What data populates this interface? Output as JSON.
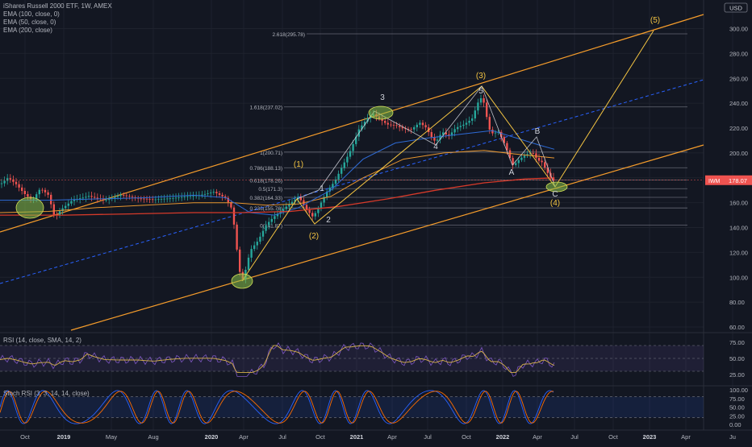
{
  "legend": {
    "title": "iShares Russell 2000 ETF, 1W, AMEX",
    "indicators": [
      "EMA (100, close, 0)",
      "EMA (50, close, 0)",
      "EMA (200, close)"
    ]
  },
  "price_axis": {
    "currency": "USD",
    "ticks": [
      "300.00",
      "280.00",
      "260.00",
      "240.00",
      "220.00",
      "200.00",
      "180.00",
      "160.00",
      "140.00",
      "120.00",
      "100.00",
      "80.00",
      "60.00"
    ],
    "tick_values": [
      300,
      280,
      260,
      240,
      220,
      200,
      180,
      160,
      140,
      120,
      100,
      80,
      60
    ],
    "last_symbol": "IWM",
    "last_price": "178.07",
    "last_price_value": 178.07
  },
  "time_axis": {
    "labels": [
      "Oct",
      "2019",
      "May",
      "Aug",
      "2020",
      "Apr",
      "Jul",
      "Oct",
      "2021",
      "Apr",
      "Jul",
      "Oct",
      "2022",
      "Apr",
      "Jul",
      "Oct",
      "2023",
      "Apr",
      "Ju"
    ]
  },
  "fib_levels": [
    {
      "label": "2.618(295.78)",
      "value": 295.78
    },
    {
      "label": "1.618(237.02)",
      "value": 237.02
    },
    {
      "label": "1(200.71)",
      "value": 200.71
    },
    {
      "label": "0.786(188.13)",
      "value": 188.13
    },
    {
      "label": "0.618(178.26)",
      "value": 178.26
    },
    {
      "label": "0.5(171.3)",
      "value": 171.3
    },
    {
      "label": "0.382(164.33)",
      "value": 164.33
    },
    {
      "label": "0.236(155.76)",
      "value": 155.76
    },
    {
      "label": "0(141.87)",
      "value": 141.87
    }
  ],
  "wave_labels": [
    {
      "text": "(5)",
      "color": "#f5c542"
    },
    {
      "text": "(3)",
      "color": "#f5c542"
    },
    {
      "text": "3",
      "color": "#d1d4dc"
    },
    {
      "text": "5",
      "color": "#d1d4dc"
    },
    {
      "text": "4",
      "color": "#d1d4dc"
    },
    {
      "text": "B",
      "color": "#d1d4dc"
    },
    {
      "text": "A",
      "color": "#d1d4dc"
    },
    {
      "text": "C",
      "color": "#d1d4dc"
    },
    {
      "text": "(4)",
      "color": "#f5c542"
    },
    {
      "text": "1",
      "color": "#d1d4dc"
    },
    {
      "text": "(1)",
      "color": "#f5c542"
    },
    {
      "text": "2",
      "color": "#d1d4dc"
    },
    {
      "text": "(2)",
      "color": "#f5c542"
    }
  ],
  "rsi_pane": {
    "label": "RSI (14, close, SMA, 14, 2)",
    "ticks": [
      "75.00",
      "50.00",
      "25.00"
    ]
  },
  "stoch_pane": {
    "label": "Stoch RSI (3, 3, 14, 14, close)",
    "ticks": [
      "100.00",
      "75.00",
      "50.00",
      "25.00",
      "0.00"
    ]
  },
  "colors": {
    "background": "#131722",
    "channel": "#f59c2b",
    "midline": "#2962ff",
    "ema100": "#e8962f",
    "ema50": "#2e6bd6",
    "ema200": "#d63a2a",
    "up": "#26a69a",
    "down": "#ef5350",
    "fib": "#787b86",
    "wave": "#f5c542",
    "rsi_line": "#7e57c2",
    "rsi_ma": "#d8b24a",
    "stoch_k": "#2962ff",
    "stoch_d": "#ff6d00",
    "last_price_bg": "#ef5350"
  }
}
